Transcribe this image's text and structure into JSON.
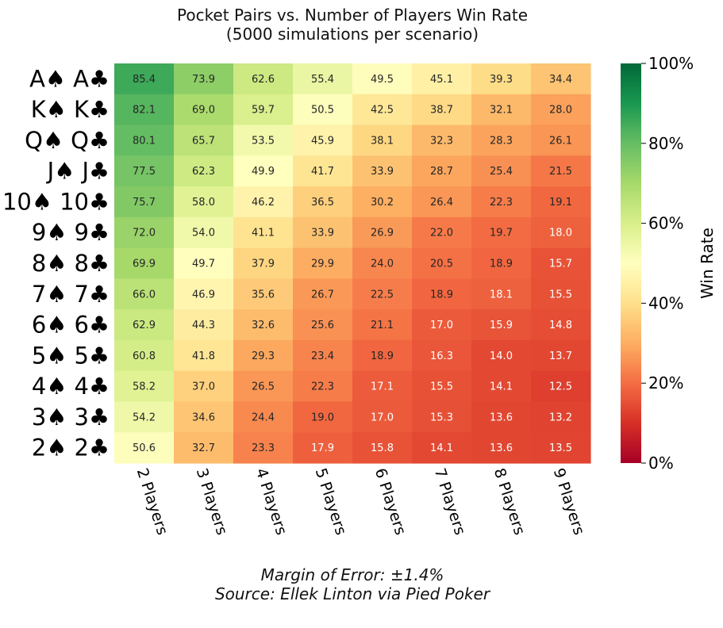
{
  "chart_data": {
    "type": "heatmap",
    "title_lines": [
      "Pocket Pairs vs. Number of Players Win Rate",
      "(5000 simulations per scenario)"
    ],
    "rows": [
      "A♠ A♣",
      "K♠ K♣",
      "Q♠ Q♣",
      "J♠ J♣",
      "10♠ 10♣",
      "9♠ 9♣",
      "8♠ 8♣",
      "7♠ 7♣",
      "6♠ 6♣",
      "5♠ 5♣",
      "4♠ 4♣",
      "3♠ 3♣",
      "2♠ 2♣"
    ],
    "columns": [
      "2 Players",
      "3 Players",
      "4 Players",
      "5 Players",
      "6 Players",
      "7 Players",
      "8 Players",
      "9 Players"
    ],
    "values": [
      [
        85.4,
        73.9,
        62.6,
        55.4,
        49.5,
        45.1,
        39.3,
        34.4
      ],
      [
        82.1,
        69.0,
        59.7,
        50.5,
        42.5,
        38.7,
        32.1,
        28.0
      ],
      [
        80.1,
        65.7,
        53.5,
        45.9,
        38.1,
        32.3,
        28.3,
        26.1
      ],
      [
        77.5,
        62.3,
        49.9,
        41.7,
        33.9,
        28.7,
        25.4,
        21.5
      ],
      [
        75.7,
        58.0,
        46.2,
        36.5,
        30.2,
        26.4,
        22.3,
        19.1
      ],
      [
        72.0,
        54.0,
        41.1,
        33.9,
        26.9,
        22.0,
        19.7,
        18.0
      ],
      [
        69.9,
        49.7,
        37.9,
        29.9,
        24.0,
        20.5,
        18.9,
        15.7
      ],
      [
        66.0,
        46.9,
        35.6,
        26.7,
        22.5,
        18.9,
        18.1,
        15.5
      ],
      [
        62.9,
        44.3,
        32.6,
        25.6,
        21.1,
        17.0,
        15.9,
        14.8
      ],
      [
        60.8,
        41.8,
        29.3,
        23.4,
        18.9,
        16.3,
        14.0,
        13.7
      ],
      [
        58.2,
        37.0,
        26.5,
        22.3,
        17.1,
        15.5,
        14.1,
        12.5
      ],
      [
        54.2,
        34.6,
        24.4,
        19.0,
        17.0,
        15.3,
        13.6,
        13.2
      ],
      [
        50.6,
        32.7,
        23.3,
        17.9,
        15.8,
        14.1,
        13.6,
        13.5
      ]
    ],
    "value_format": "one decimal",
    "colormap": "RdYlGn",
    "vmin": 0,
    "vmax": 100,
    "colorbar": {
      "label": "Win Rate",
      "ticks": [
        0,
        20,
        40,
        60,
        80,
        100
      ],
      "tick_labels": [
        "0%",
        "20%",
        "40%",
        "60%",
        "80%",
        "100%"
      ]
    },
    "footnotes": [
      "Margin of Error: ±1.4%",
      "Source: Ellek Linton via Pied Poker"
    ]
  }
}
